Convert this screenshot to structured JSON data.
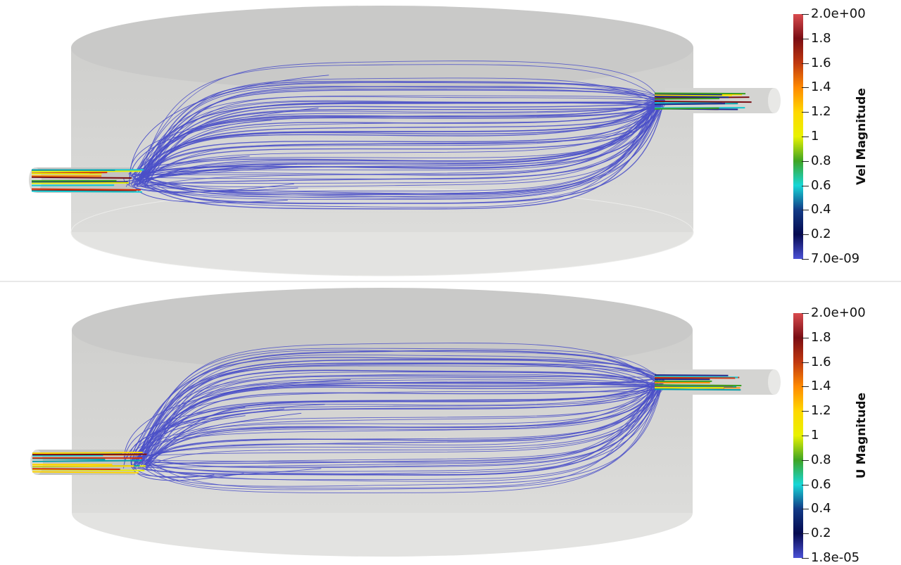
{
  "panels": [
    {
      "colorbar": {
        "title": "Vel Magnitude",
        "labels": [
          "2.0e+00",
          "1.8",
          "1.6",
          "1.4",
          "1.2",
          "1",
          "0.8",
          "0.6",
          "0.4",
          "0.2",
          "7.0e-09"
        ],
        "range": [
          7e-09,
          2.0
        ],
        "colormap": "jet"
      }
    },
    {
      "colorbar": {
        "title": "U Magnitude",
        "labels": [
          "2.0e+00",
          "1.8",
          "1.6",
          "1.4",
          "1.2",
          "1",
          "0.8",
          "0.6",
          "0.4",
          "0.2",
          "1.8e-05"
        ],
        "range": [
          1.8e-05,
          2.0
        ],
        "colormap": "jet"
      }
    }
  ],
  "colors": {
    "tank_body": "#d6d6d4",
    "tank_top": "#cbcbca",
    "tank_bottom": "#e4e4e2",
    "streamline_low": "#4a4fc8",
    "gradient": [
      "#d94b4e",
      "#7a0d14",
      "#c0380f",
      "#ff8a00",
      "#ffd800",
      "#e9f200",
      "#3fa423",
      "#17d7d7",
      "#123a86",
      "#050a50",
      "#4b51d6"
    ]
  }
}
